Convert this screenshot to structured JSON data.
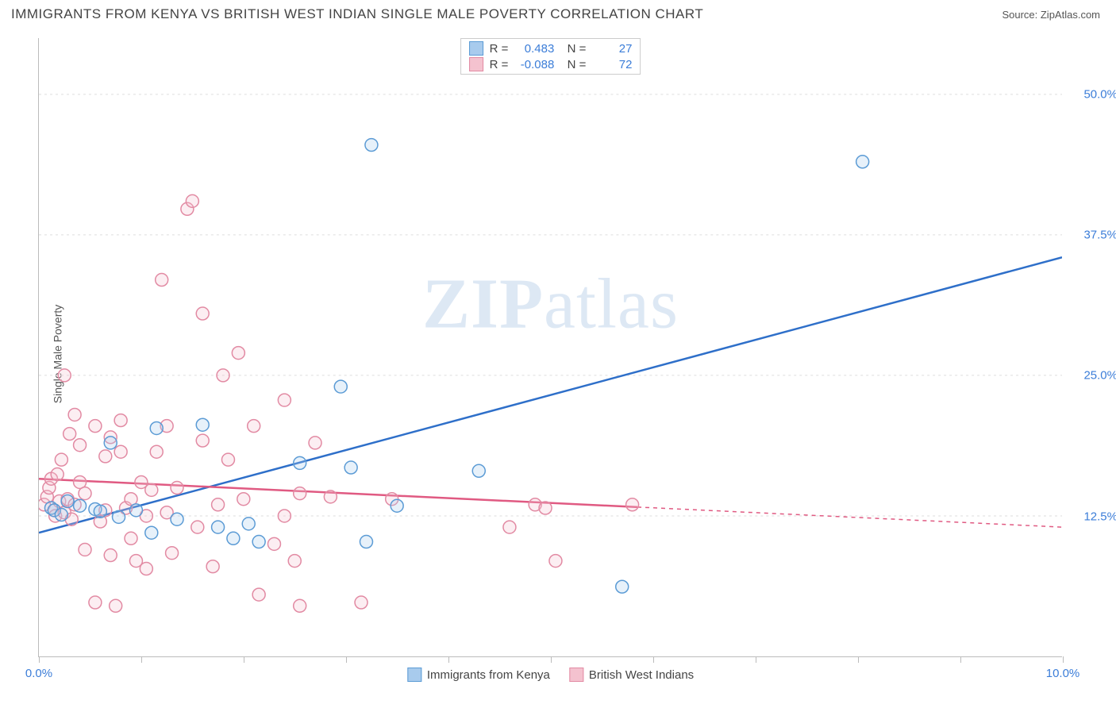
{
  "title": "IMMIGRANTS FROM KENYA VS BRITISH WEST INDIAN SINGLE MALE POVERTY CORRELATION CHART",
  "source": "Source: ZipAtlas.com",
  "y_axis_label": "Single Male Poverty",
  "watermark": "ZIPatlas",
  "chart": {
    "type": "scatter",
    "xlim": [
      0,
      10
    ],
    "ylim": [
      0,
      55
    ],
    "x_ticks": [
      0,
      1,
      2,
      3,
      4,
      5,
      6,
      7,
      8,
      9,
      10
    ],
    "x_tick_labels": {
      "0": "0.0%",
      "10": "10.0%"
    },
    "y_ticks": [
      12.5,
      25.0,
      37.5,
      50.0
    ],
    "y_tick_labels": [
      "12.5%",
      "25.0%",
      "37.5%",
      "50.0%"
    ],
    "background_color": "#ffffff",
    "grid_color": "#dddddd",
    "axis_color": "#bbbbbb",
    "tick_label_color": "#3b7dd8",
    "marker_radius": 8,
    "marker_stroke_width": 1.5,
    "marker_fill_opacity": 0.28,
    "series": [
      {
        "name": "Immigrants from Kenya",
        "color_stroke": "#5b9bd5",
        "color_fill": "#a8cbed",
        "line_color": "#2e6fc9",
        "R": "0.483",
        "N": "27",
        "trend": {
          "x1": 0,
          "y1": 11.0,
          "x2": 10,
          "y2": 35.5,
          "solid_until_x": 10
        },
        "points": [
          [
            0.12,
            13.2
          ],
          [
            0.15,
            13.0
          ],
          [
            0.22,
            12.6
          ],
          [
            0.28,
            13.8
          ],
          [
            0.4,
            13.4
          ],
          [
            0.55,
            13.1
          ],
          [
            0.6,
            12.9
          ],
          [
            0.7,
            19.0
          ],
          [
            0.78,
            12.4
          ],
          [
            0.95,
            13.0
          ],
          [
            1.1,
            11.0
          ],
          [
            1.15,
            20.3
          ],
          [
            1.35,
            12.2
          ],
          [
            1.6,
            20.6
          ],
          [
            1.75,
            11.5
          ],
          [
            1.9,
            10.5
          ],
          [
            2.05,
            11.8
          ],
          [
            2.15,
            10.2
          ],
          [
            2.55,
            17.2
          ],
          [
            2.95,
            24.0
          ],
          [
            3.05,
            16.8
          ],
          [
            3.2,
            10.2
          ],
          [
            3.25,
            45.5
          ],
          [
            3.5,
            13.4
          ],
          [
            4.3,
            16.5
          ],
          [
            5.7,
            6.2
          ],
          [
            8.05,
            44.0
          ]
        ]
      },
      {
        "name": "British West Indians",
        "color_stroke": "#e28aa3",
        "color_fill": "#f4c2cf",
        "line_color": "#e05a82",
        "R": "-0.088",
        "N": "72",
        "trend": {
          "x1": 0,
          "y1": 15.8,
          "x2": 10,
          "y2": 11.5,
          "solid_until_x": 5.85
        },
        "points": [
          [
            0.05,
            13.5
          ],
          [
            0.08,
            14.2
          ],
          [
            0.1,
            15.0
          ],
          [
            0.12,
            15.8
          ],
          [
            0.15,
            13.0
          ],
          [
            0.16,
            12.5
          ],
          [
            0.18,
            16.2
          ],
          [
            0.2,
            13.8
          ],
          [
            0.22,
            17.5
          ],
          [
            0.25,
            12.8
          ],
          [
            0.25,
            25.0
          ],
          [
            0.28,
            14.0
          ],
          [
            0.3,
            19.8
          ],
          [
            0.32,
            12.2
          ],
          [
            0.35,
            13.5
          ],
          [
            0.35,
            21.5
          ],
          [
            0.4,
            15.5
          ],
          [
            0.4,
            18.8
          ],
          [
            0.45,
            9.5
          ],
          [
            0.45,
            14.5
          ],
          [
            0.55,
            4.8
          ],
          [
            0.55,
            20.5
          ],
          [
            0.6,
            12.0
          ],
          [
            0.65,
            13.0
          ],
          [
            0.65,
            17.8
          ],
          [
            0.7,
            9.0
          ],
          [
            0.7,
            19.5
          ],
          [
            0.75,
            4.5
          ],
          [
            0.8,
            18.2
          ],
          [
            0.8,
            21.0
          ],
          [
            0.85,
            13.2
          ],
          [
            0.9,
            10.5
          ],
          [
            0.9,
            14.0
          ],
          [
            0.95,
            8.5
          ],
          [
            1.0,
            15.5
          ],
          [
            1.05,
            7.8
          ],
          [
            1.05,
            12.5
          ],
          [
            1.1,
            14.8
          ],
          [
            1.15,
            18.2
          ],
          [
            1.2,
            33.5
          ],
          [
            1.25,
            12.8
          ],
          [
            1.25,
            20.5
          ],
          [
            1.3,
            9.2
          ],
          [
            1.35,
            15.0
          ],
          [
            1.45,
            39.8
          ],
          [
            1.5,
            40.5
          ],
          [
            1.55,
            11.5
          ],
          [
            1.6,
            19.2
          ],
          [
            1.6,
            30.5
          ],
          [
            1.7,
            8.0
          ],
          [
            1.75,
            13.5
          ],
          [
            1.8,
            25.0
          ],
          [
            1.85,
            17.5
          ],
          [
            1.95,
            27.0
          ],
          [
            2.0,
            14.0
          ],
          [
            2.1,
            20.5
          ],
          [
            2.15,
            5.5
          ],
          [
            2.3,
            10.0
          ],
          [
            2.4,
            12.5
          ],
          [
            2.4,
            22.8
          ],
          [
            2.5,
            8.5
          ],
          [
            2.55,
            14.5
          ],
          [
            2.55,
            4.5
          ],
          [
            2.7,
            19.0
          ],
          [
            2.85,
            14.2
          ],
          [
            3.15,
            4.8
          ],
          [
            3.45,
            14.0
          ],
          [
            4.6,
            11.5
          ],
          [
            4.85,
            13.5
          ],
          [
            4.95,
            13.2
          ],
          [
            5.05,
            8.5
          ],
          [
            5.8,
            13.5
          ]
        ]
      }
    ]
  },
  "legend_bottom": [
    {
      "label": "Immigrants from Kenya",
      "fill": "#a8cbed",
      "stroke": "#5b9bd5"
    },
    {
      "label": "British West Indians",
      "fill": "#f4c2cf",
      "stroke": "#e28aa3"
    }
  ]
}
